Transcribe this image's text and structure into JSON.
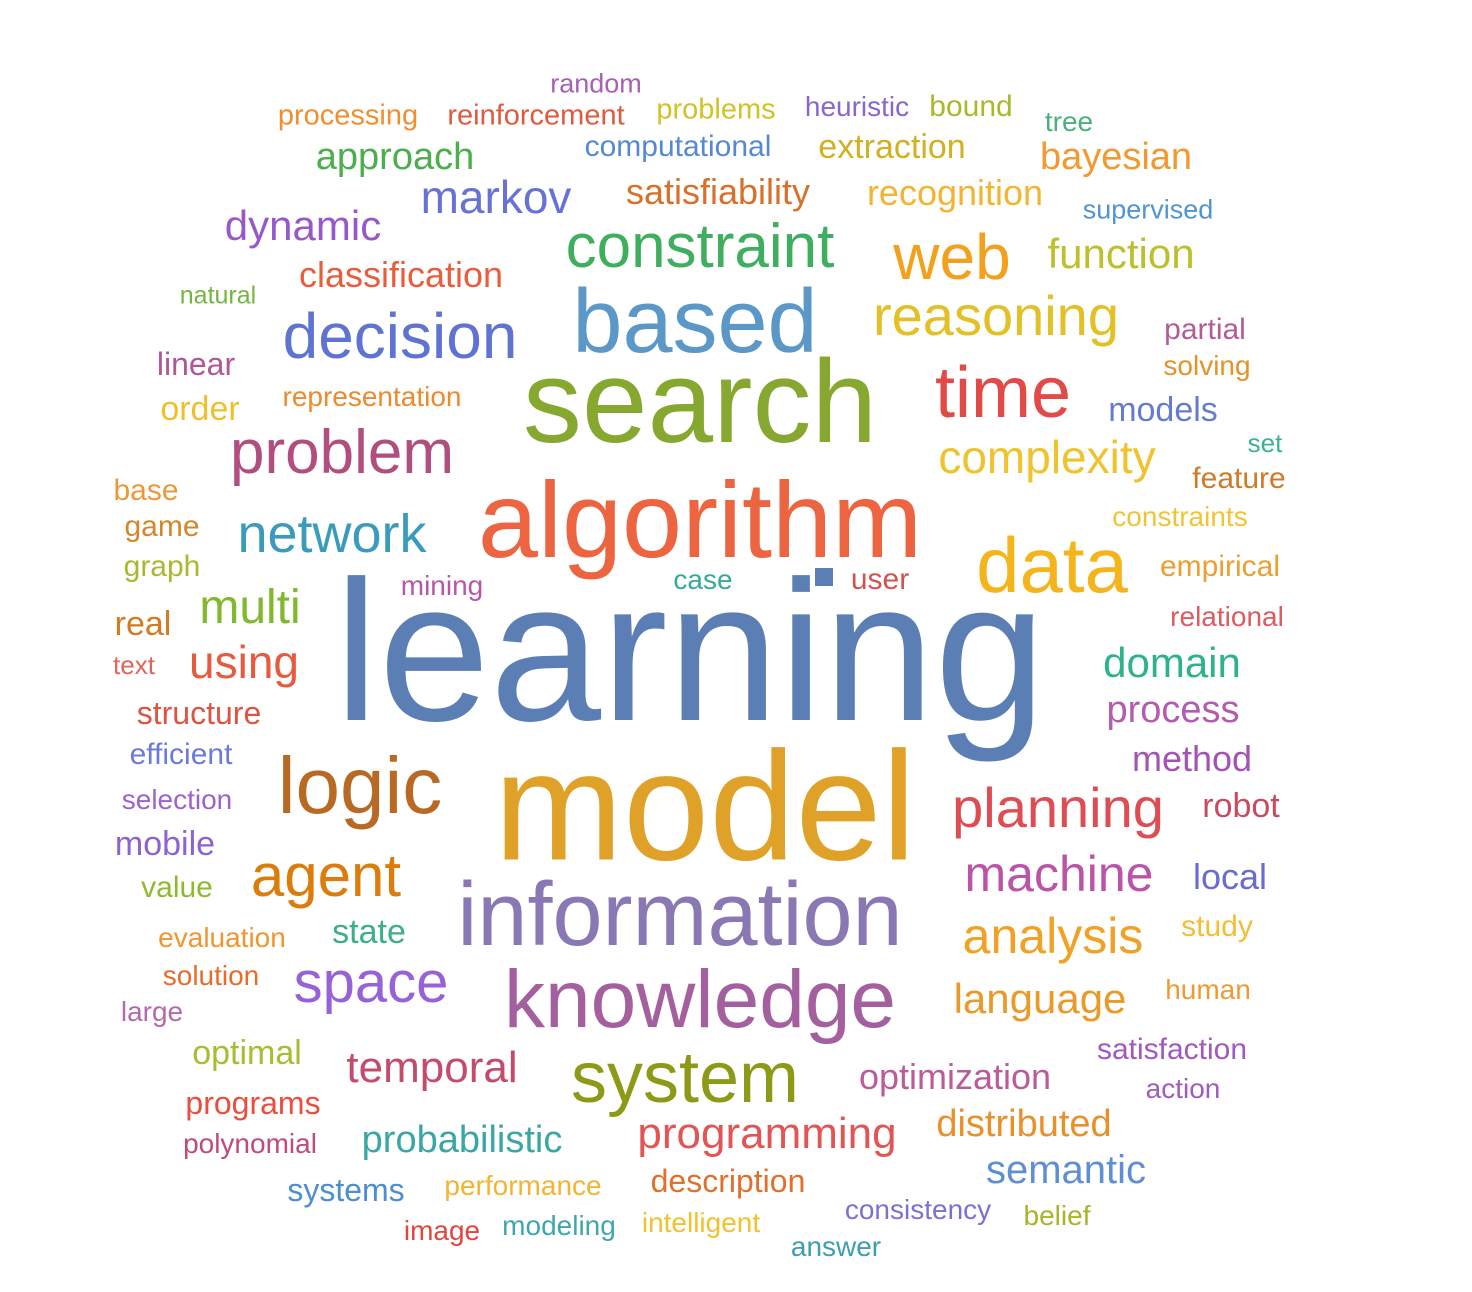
{
  "words": [
    {
      "text": "learning",
      "color": "#5b7fb5"
    },
    {
      "text": "model",
      "color": "#e0a128"
    },
    {
      "text": "search",
      "color": "#86a830"
    },
    {
      "text": "algorithm",
      "color": "#ec6440"
    },
    {
      "text": "information",
      "color": "#8a78b5"
    },
    {
      "text": "knowledge",
      "color": "#a35f9e"
    },
    {
      "text": "based",
      "color": "#5b98c8"
    },
    {
      "text": "data",
      "color": "#f4b41b"
    },
    {
      "text": "system",
      "color": "#8d9a18"
    },
    {
      "text": "logic",
      "color": "#b86a25"
    },
    {
      "text": "time",
      "color": "#e14a46"
    },
    {
      "text": "constraint",
      "color": "#3fae5e"
    },
    {
      "text": "decision",
      "color": "#5f73d2"
    },
    {
      "text": "problem",
      "color": "#b04f7e"
    },
    {
      "text": "reasoning",
      "color": "#e4c027"
    },
    {
      "text": "web",
      "color": "#f3a11c"
    },
    {
      "text": "planning",
      "color": "#df4d54"
    },
    {
      "text": "agent",
      "color": "#db7c0c"
    },
    {
      "text": "space",
      "color": "#9761d8"
    },
    {
      "text": "network",
      "color": "#3b9bbd"
    },
    {
      "text": "machine",
      "color": "#b954a8"
    },
    {
      "text": "analysis",
      "color": "#f1a126"
    },
    {
      "text": "complexity",
      "color": "#eec32d"
    },
    {
      "text": "multi",
      "color": "#80b92b"
    },
    {
      "text": "using",
      "color": "#e65b3d"
    },
    {
      "text": "programming",
      "color": "#e35555"
    },
    {
      "text": "temporal",
      "color": "#c34c6a"
    },
    {
      "text": "markov",
      "color": "#6872d4"
    },
    {
      "text": "domain",
      "color": "#2eb28b"
    },
    {
      "text": "language",
      "color": "#e99a2b"
    },
    {
      "text": "probabilistic",
      "color": "#3ba7a3"
    },
    {
      "text": "semantic",
      "color": "#5e8fd3"
    },
    {
      "text": "function",
      "color": "#bcc02c"
    },
    {
      "text": "approach",
      "color": "#4cae4c"
    },
    {
      "text": "bayesian",
      "color": "#f29a2f"
    },
    {
      "text": "optimization",
      "color": "#bb5b99"
    },
    {
      "text": "distributed",
      "color": "#ea9029"
    },
    {
      "text": "process",
      "color": "#b25baf"
    },
    {
      "text": "dynamic",
      "color": "#9858c8"
    },
    {
      "text": "satisfiability",
      "color": "#d8702a"
    },
    {
      "text": "recognition",
      "color": "#f3b431"
    },
    {
      "text": "classification",
      "color": "#e95c3c"
    },
    {
      "text": "extraction",
      "color": "#d1b021"
    },
    {
      "text": "method",
      "color": "#a353b4"
    },
    {
      "text": "description",
      "color": "#e2702d"
    },
    {
      "text": "optimal",
      "color": "#a9bc32"
    },
    {
      "text": "robot",
      "color": "#c84c61"
    },
    {
      "text": "structure",
      "color": "#dd5443"
    },
    {
      "text": "local",
      "color": "#6a6cd1"
    },
    {
      "text": "satisfaction",
      "color": "#a058c2"
    },
    {
      "text": "models",
      "color": "#667bd0"
    },
    {
      "text": "systems",
      "color": "#4d8ed0"
    },
    {
      "text": "computational",
      "color": "#5789d3"
    },
    {
      "text": "reinforcement",
      "color": "#df5a3f"
    },
    {
      "text": "processing",
      "color": "#ef8f30"
    },
    {
      "text": "problems",
      "color": "#d4c128"
    },
    {
      "text": "heuristic",
      "color": "#8767cf"
    },
    {
      "text": "bound",
      "color": "#a8b92a"
    },
    {
      "text": "random",
      "color": "#a860b2"
    },
    {
      "text": "tree",
      "color": "#4bb07d"
    },
    {
      "text": "supervised",
      "color": "#4f95d3"
    },
    {
      "text": "natural",
      "color": "#73b53d"
    },
    {
      "text": "linear",
      "color": "#b05798"
    },
    {
      "text": "order",
      "color": "#edc030"
    },
    {
      "text": "representation",
      "color": "#ec8a2e"
    },
    {
      "text": "partial",
      "color": "#b35c94"
    },
    {
      "text": "solving",
      "color": "#e3932a"
    },
    {
      "text": "set",
      "color": "#3bb391"
    },
    {
      "text": "feature",
      "color": "#d07a28"
    },
    {
      "text": "constraints",
      "color": "#f0c535"
    },
    {
      "text": "base",
      "color": "#ee9736"
    },
    {
      "text": "game",
      "color": "#d5862a"
    },
    {
      "text": "graph",
      "color": "#a9b82f"
    },
    {
      "text": "empirical",
      "color": "#ec9f2e"
    },
    {
      "text": "mining",
      "color": "#b956a6"
    },
    {
      "text": "case",
      "color": "#36aa9a"
    },
    {
      "text": "user",
      "color": "#d2534c"
    },
    {
      "text": "real",
      "color": "#d27b21"
    },
    {
      "text": "relational",
      "color": "#dd5a5f"
    },
    {
      "text": "text",
      "color": "#e2655a"
    },
    {
      "text": "efficient",
      "color": "#6a7cd7"
    },
    {
      "text": "selection",
      "color": "#9d62cd"
    },
    {
      "text": "mobile",
      "color": "#8d63d1"
    },
    {
      "text": "value",
      "color": "#8dbb2b"
    },
    {
      "text": "state",
      "color": "#3ab08a"
    },
    {
      "text": "study",
      "color": "#f3bd35"
    },
    {
      "text": "evaluation",
      "color": "#f1952f"
    },
    {
      "text": "solution",
      "color": "#e56c2b"
    },
    {
      "text": "human",
      "color": "#ea9c33"
    },
    {
      "text": "large",
      "color": "#b56aa8"
    },
    {
      "text": "action",
      "color": "#a15bc0"
    },
    {
      "text": "programs",
      "color": "#ea4e3e"
    },
    {
      "text": "polynomial",
      "color": "#c14a79"
    },
    {
      "text": "performance",
      "color": "#f3b431"
    },
    {
      "text": "consistency",
      "color": "#7873d3"
    },
    {
      "text": "belief",
      "color": "#a7b52b"
    },
    {
      "text": "image",
      "color": "#e1463f"
    },
    {
      "text": "modeling",
      "color": "#40a6ad"
    },
    {
      "text": "intelligent",
      "color": "#f0c22e"
    },
    {
      "text": "answer",
      "color": "#3c9db3"
    }
  ],
  "marker_color": "#5b7fb5"
}
